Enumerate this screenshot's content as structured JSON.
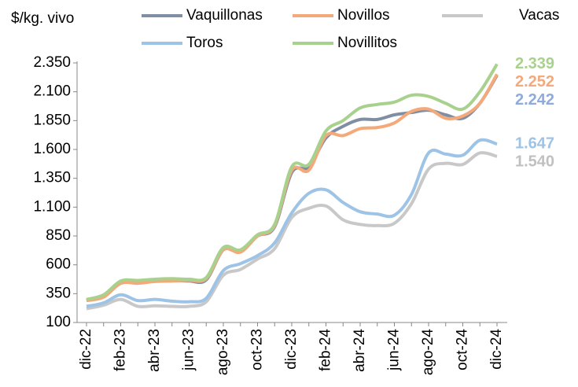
{
  "chart_data": {
    "type": "line",
    "y_label": "$/kg. vivo",
    "categories": [
      "dic-22",
      null,
      "feb-23",
      null,
      "abr-23",
      null,
      "jun-23",
      null,
      "ago-23",
      null,
      "oct-23",
      null,
      "dic-23",
      null,
      "feb-24",
      null,
      "abr-24",
      null,
      "jun-24",
      null,
      "ago-24",
      null,
      "oct-24",
      null,
      "dic-24"
    ],
    "ylim": [
      100,
      2350
    ],
    "yticks": [
      100,
      350,
      600,
      850,
      {
        "value": 1100,
        "label": "1.100"
      },
      {
        "value": 1350,
        "label": "1.350"
      },
      {
        "value": 1600,
        "label": "1.600"
      },
      {
        "value": 1850,
        "label": "1.850"
      },
      {
        "value": 2100,
        "label": "2.100"
      },
      {
        "value": 2350,
        "label": "2.350"
      }
    ],
    "legend": "top",
    "series": [
      {
        "name": "Vaquillonas",
        "color": "#7f8ea3",
        "label_color": "#8faadc",
        "values": [
          290,
          330,
          440,
          450,
          460,
          465,
          460,
          470,
          730,
          720,
          850,
          930,
          1400,
          1450,
          1700,
          1800,
          1860,
          1860,
          1900,
          1920,
          1940,
          1900,
          1870,
          2000,
          2242
        ],
        "value_labels": [
          null,
          null,
          null,
          null,
          null,
          null,
          null,
          null,
          null,
          null,
          null,
          null,
          null,
          null,
          null,
          null,
          null,
          null,
          null,
          null,
          null,
          null,
          null,
          null,
          "2.242"
        ]
      },
      {
        "name": "Novillos",
        "color": "#f4a97a",
        "label_color": "#f4a97a",
        "values": [
          290,
          320,
          440,
          440,
          455,
          460,
          465,
          480,
          730,
          710,
          850,
          940,
          1420,
          1420,
          1720,
          1720,
          1780,
          1790,
          1830,
          1930,
          1950,
          1870,
          1890,
          2000,
          2252
        ],
        "value_labels": [
          null,
          null,
          null,
          null,
          null,
          null,
          null,
          null,
          null,
          null,
          null,
          null,
          null,
          null,
          null,
          null,
          null,
          null,
          null,
          null,
          null,
          null,
          null,
          null,
          "2.252"
        ]
      },
      {
        "name": "Vacas",
        "color": "#c8c8c8",
        "label_color": "#c0c0c0",
        "values": [
          220,
          250,
          300,
          240,
          245,
          240,
          240,
          280,
          510,
          560,
          650,
          740,
          1010,
          1090,
          1110,
          990,
          950,
          940,
          960,
          1130,
          1430,
          1480,
          1470,
          1570,
          1540
        ],
        "value_labels": [
          null,
          null,
          null,
          null,
          null,
          null,
          null,
          null,
          null,
          null,
          null,
          null,
          null,
          null,
          null,
          null,
          null,
          null,
          null,
          null,
          null,
          null,
          null,
          null,
          "1.540"
        ]
      },
      {
        "name": "Toros",
        "color": "#9dc3e6",
        "label_color": "#9dc3e6",
        "values": [
          240,
          270,
          340,
          290,
          300,
          285,
          280,
          310,
          550,
          610,
          680,
          790,
          1050,
          1220,
          1250,
          1140,
          1060,
          1040,
          1030,
          1210,
          1570,
          1560,
          1550,
          1680,
          1647
        ],
        "value_labels": [
          null,
          null,
          null,
          null,
          null,
          null,
          null,
          null,
          null,
          null,
          null,
          null,
          null,
          null,
          null,
          null,
          null,
          null,
          null,
          null,
          null,
          null,
          null,
          null,
          "1.647"
        ]
      },
      {
        "name": "Novillitos",
        "color": "#a9d18e",
        "label_color": "#a9d18e",
        "values": [
          300,
          340,
          460,
          465,
          475,
          480,
          475,
          490,
          750,
          730,
          860,
          950,
          1450,
          1470,
          1760,
          1850,
          1960,
          1990,
          2010,
          2070,
          2060,
          2000,
          1950,
          2100,
          2339
        ],
        "value_labels": [
          null,
          null,
          null,
          null,
          null,
          null,
          null,
          null,
          null,
          null,
          null,
          null,
          null,
          null,
          null,
          null,
          null,
          null,
          null,
          null,
          null,
          null,
          null,
          null,
          "2.339"
        ]
      }
    ]
  }
}
